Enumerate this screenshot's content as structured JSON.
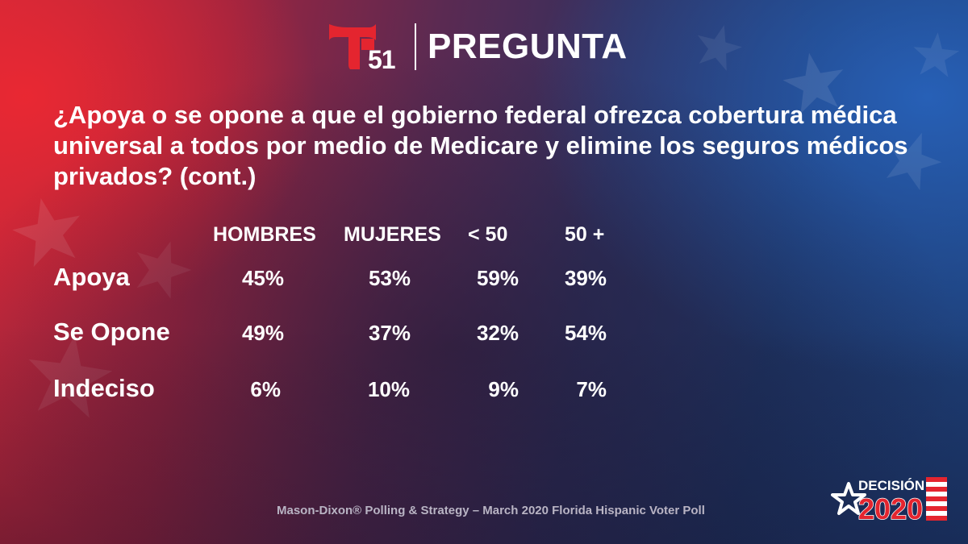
{
  "brand": {
    "logo_text": "51",
    "section_title": "PREGUNTA",
    "colors": {
      "logo_red": "#e4252f",
      "text": "#ffffff"
    }
  },
  "question": "¿Apoya o se opone a que el gobierno federal ofrezca cobertura médica universal a todos por medio de Medicare y elimine los seguros médicos privados?  (cont.)",
  "table": {
    "columns": [
      "HOMBRES",
      "MUJERES",
      "< 50",
      "50 +"
    ],
    "rows": [
      {
        "label": "Apoya",
        "values": [
          "45%",
          "53%",
          "59%",
          "39%"
        ]
      },
      {
        "label": "Se Opone",
        "values": [
          "49%",
          "37%",
          "32%",
          "54%"
        ]
      },
      {
        "label": "Indeciso",
        "values": [
          "6%",
          "10%",
          "9%",
          "7%"
        ]
      }
    ]
  },
  "footer": "Mason-Dixon® Polling & Strategy – March 2020 Florida Hispanic Voter Poll",
  "election_badge": {
    "line1": "DECISIÓN",
    "line2": "2020"
  }
}
